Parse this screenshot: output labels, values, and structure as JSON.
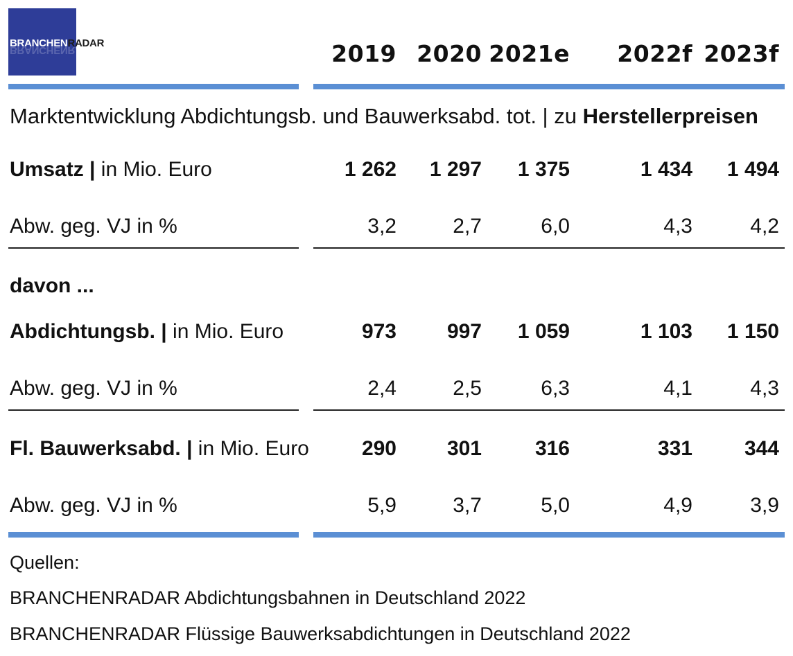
{
  "logo": {
    "part1": "BRANCHEN",
    "part2": "RADAR"
  },
  "years": [
    "2019",
    "2020",
    "2021e",
    "2022f",
    "2023f"
  ],
  "subtitle": {
    "prefix": "Marktentwicklung Abdichtungsb. und Bauwerksabd. tot. | zu ",
    "bold": "Herstellerpreisen"
  },
  "rows": {
    "umsatz": {
      "label_bold": "Umsatz |",
      "label_rest": " in Mio. Euro",
      "values": [
        "1 262",
        "1 297",
        "1 375",
        "1 434",
        "1 494"
      ]
    },
    "umsatz_change": {
      "label": "Abw. geg. VJ in %",
      "values": [
        "3,2",
        "2,7",
        "6,0",
        "4,3",
        "4,2"
      ]
    },
    "davon": {
      "label": "davon ..."
    },
    "abdichtung": {
      "label_bold": "Abdichtungsb. |",
      "label_rest": " in Mio. Euro",
      "values": [
        "973",
        "997",
        "1 059",
        "1 103",
        "1 150"
      ]
    },
    "abdichtung_change": {
      "label": "Abw. geg. VJ in %",
      "values": [
        "2,4",
        "2,5",
        "6,3",
        "4,1",
        "4,3"
      ]
    },
    "bauwerk": {
      "label_bold": "Fl. Bauwerksabd. |",
      "label_rest": " in Mio. Euro",
      "values": [
        "290",
        "301",
        "316",
        "331",
        "344"
      ]
    },
    "bauwerk_change": {
      "label": "Abw. geg. VJ in %",
      "values": [
        "5,9",
        "3,7",
        "5,0",
        "4,9",
        "3,9"
      ]
    }
  },
  "sources": {
    "heading": "Quellen:",
    "items": [
      "BRANCHENRADAR Abdichtungsbahnen in Deutschland 2022",
      "BRANCHENRADAR Flüssige Bauwerksabdichtungen in Deutschland 2022"
    ]
  },
  "colors": {
    "accent_rule": "#5b8fd4",
    "logo_bg": "#2e3d98"
  }
}
